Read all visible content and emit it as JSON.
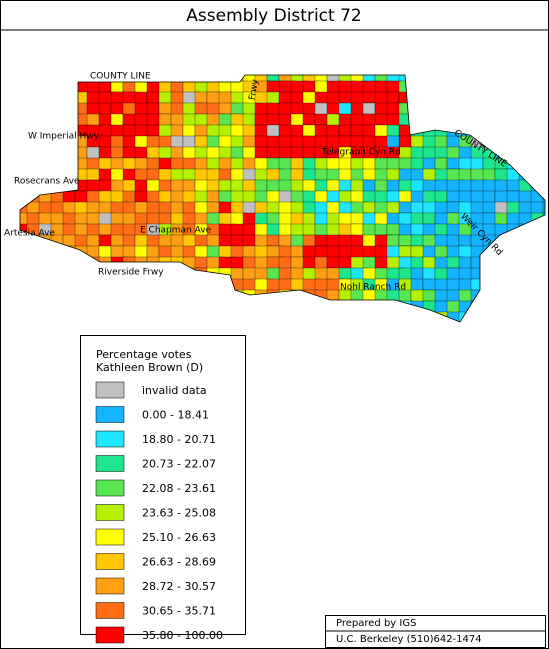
{
  "title": "Assembly District 72",
  "roads": [
    "COUNTY LINE",
    "Frwy",
    "W Imperial Hwy",
    "Rosecrans Ave",
    "Artesia Ave",
    "E Chapman Ave",
    "Riverside Frwy",
    "Telegraph Cyn Rd",
    "COUNTY LINE",
    "Weir Cyn Rd",
    "Nohl Ranch Rd"
  ],
  "legend": {
    "title": [
      "Percentage votes",
      "Kathleen Brown (D)"
    ],
    "items": [
      {
        "label": "invalid data",
        "color": "#c0c0c0"
      },
      {
        "label": "0.00  -  18.41",
        "color": "#14b4ff"
      },
      {
        "label": "18.80  -  20.71",
        "color": "#1ee6ff"
      },
      {
        "label": "20.73  -  22.07",
        "color": "#1ee68c"
      },
      {
        "label": "22.08  -  23.61",
        "color": "#5ae650"
      },
      {
        "label": "23.63  -  25.08",
        "color": "#b4f000"
      },
      {
        "label": "25.10  -  26.63",
        "color": "#ffff00"
      },
      {
        "label": "26.63  -  28.69",
        "color": "#ffc800"
      },
      {
        "label": "28.72  -  30.57",
        "color": "#ffa014"
      },
      {
        "label": "30.65  -  35.71",
        "color": "#ff6e14"
      },
      {
        "label": "35.80  -  100.00",
        "color": "#ff0000"
      }
    ]
  },
  "credit": [
    "Prepared by IGS",
    "U.C. Berkeley  (510)642-1474"
  ]
}
